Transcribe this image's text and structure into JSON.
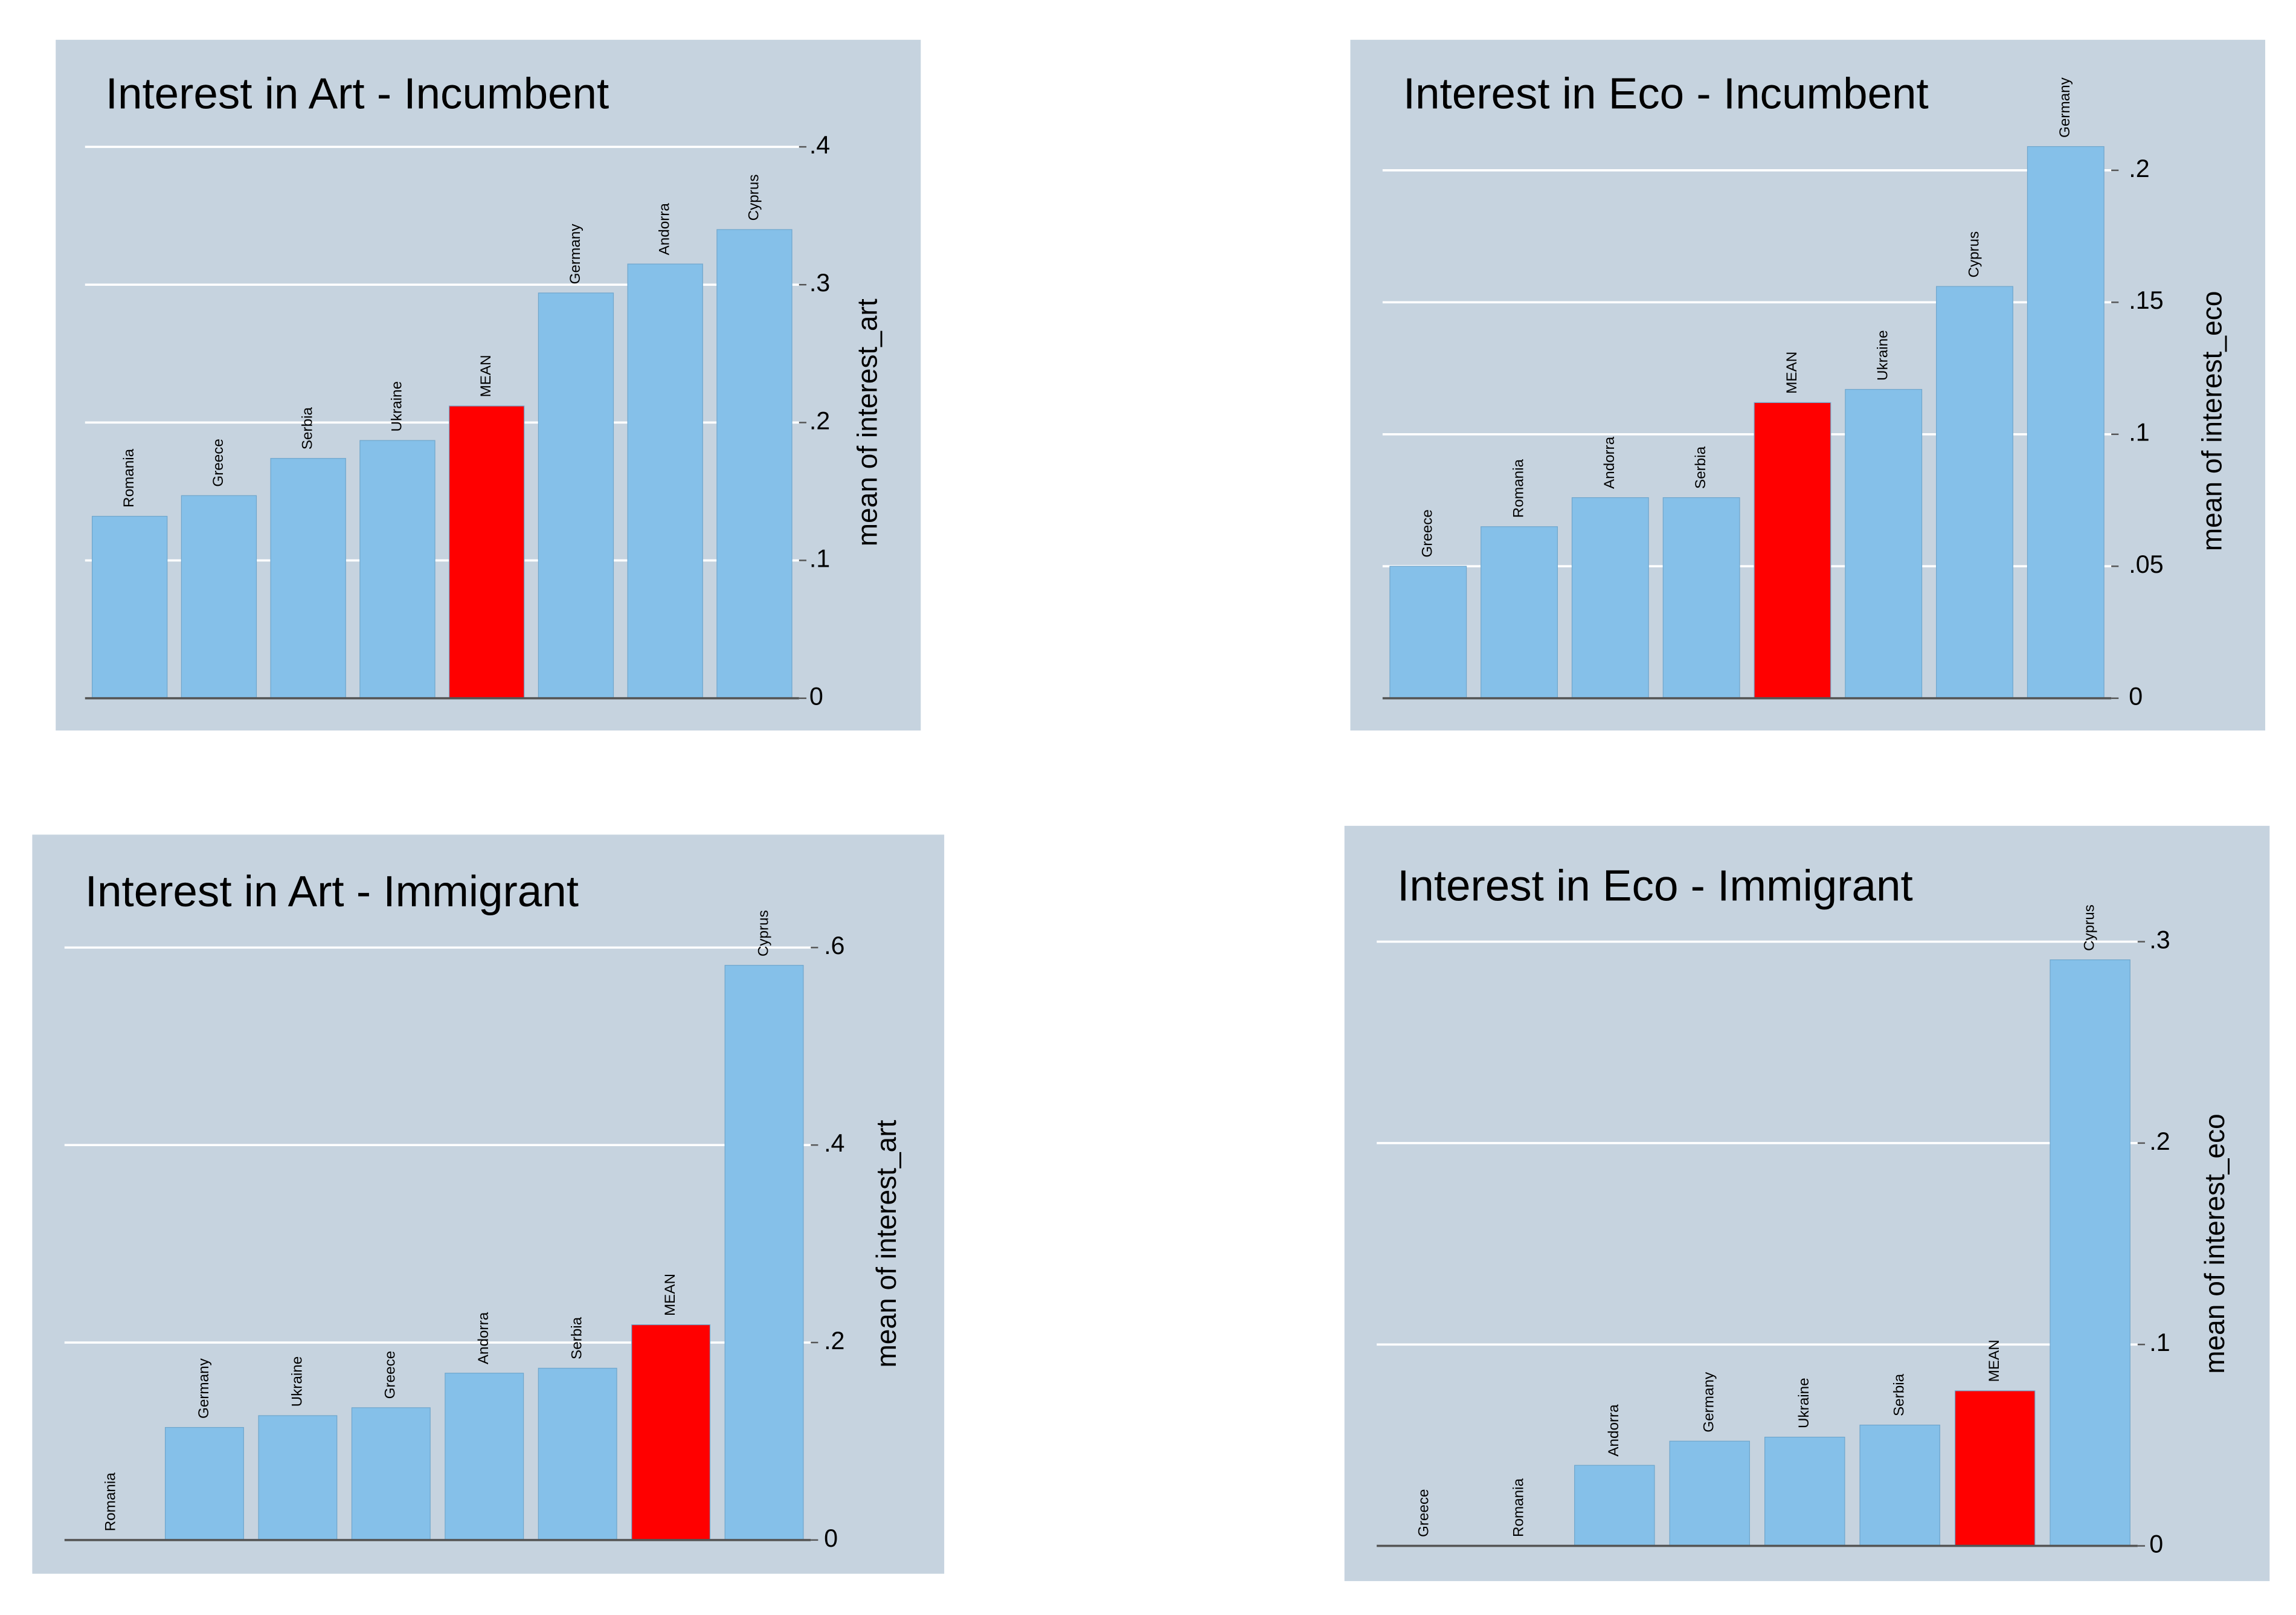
{
  "chart_data": [
    {
      "type": "bar",
      "title": "Interest in Art - Incumbent",
      "y_label": "mean of interest_art",
      "categories": [
        "Romania",
        "Greece",
        "Serbia",
        "Ukraine",
        "MEAN",
        "Germany",
        "Andorra",
        "Cyprus"
      ],
      "values": [
        0.132,
        0.147,
        0.174,
        0.187,
        0.212,
        0.294,
        0.315,
        0.34
      ],
      "colors": [
        "#85c0e9",
        "#85c0e9",
        "#85c0e9",
        "#85c0e9",
        "#ff0000",
        "#85c0e9",
        "#85c0e9",
        "#85c0e9"
      ],
      "ylim": [
        0,
        0.4
      ],
      "yticks": [
        0,
        {
          "value": 0.1,
          "label": ".1"
        },
        {
          "value": 0.2,
          "label": ".2"
        },
        {
          "value": 0.3,
          "label": ".3"
        },
        {
          "value": 0.4,
          "label": ".4"
        }
      ],
      "grid": true,
      "background": "#c6d3df"
    },
    {
      "type": "bar",
      "title": "Interest in Eco - Incumbent",
      "y_label": "mean of interest_eco",
      "categories": [
        "Greece",
        "Romania",
        "Andorra",
        "Serbia",
        "MEAN",
        "Ukraine",
        "Cyprus",
        "Germany"
      ],
      "values": [
        0.05,
        0.065,
        0.076,
        0.076,
        0.112,
        0.117,
        0.156,
        0.209
      ],
      "colors": [
        "#85c0e9",
        "#85c0e9",
        "#85c0e9",
        "#85c0e9",
        "#ff0000",
        "#85c0e9",
        "#85c0e9",
        "#85c0e9"
      ],
      "ylim": [
        0,
        0.21
      ],
      "yticks": [
        0,
        {
          "value": 0.05,
          "label": ".05"
        },
        {
          "value": 0.1,
          "label": ".1"
        },
        {
          "value": 0.15,
          "label": ".15"
        },
        {
          "value": 0.2,
          "label": ".2"
        }
      ],
      "grid": true,
      "background": "#c6d3df"
    },
    {
      "type": "bar",
      "title": "Interest in Art - Immigrant",
      "y_label": "mean of interest_art",
      "categories": [
        "Romania",
        "Germany",
        "Ukraine",
        "Greece",
        "Andorra",
        "Serbia",
        "MEAN",
        "Cyprus"
      ],
      "values": [
        0,
        0.114,
        0.126,
        0.134,
        0.169,
        0.174,
        0.218,
        0.582
      ],
      "colors": [
        "#85c0e9",
        "#85c0e9",
        "#85c0e9",
        "#85c0e9",
        "#85c0e9",
        "#85c0e9",
        "#ff0000",
        "#85c0e9"
      ],
      "ylim": [
        0,
        0.6
      ],
      "yticks": [
        0,
        {
          "value": 0.2,
          "label": ".2"
        },
        {
          "value": 0.4,
          "label": ".4"
        },
        {
          "value": 0.6,
          "label": ".6"
        }
      ],
      "grid": true,
      "background": "#c6d3df"
    },
    {
      "type": "bar",
      "title": "Interest in Eco - Immigrant",
      "y_label": "mean of interest_eco",
      "categories": [
        "Greece",
        "Romania",
        "Andorra",
        "Germany",
        "Ukraine",
        "Serbia",
        "MEAN",
        "Cyprus"
      ],
      "values": [
        0,
        0,
        0.04,
        0.052,
        0.054,
        0.06,
        0.077,
        0.291
      ],
      "colors": [
        "#85c0e9",
        "#85c0e9",
        "#85c0e9",
        "#85c0e9",
        "#85c0e9",
        "#85c0e9",
        "#ff0000",
        "#85c0e9"
      ],
      "ylim": [
        0,
        0.3
      ],
      "yticks": [
        0,
        {
          "value": 0.1,
          "label": ".1"
        },
        {
          "value": 0.2,
          "label": ".2"
        },
        {
          "value": 0.3,
          "label": ".3"
        }
      ],
      "grid": true,
      "background": "#c6d3df"
    }
  ]
}
